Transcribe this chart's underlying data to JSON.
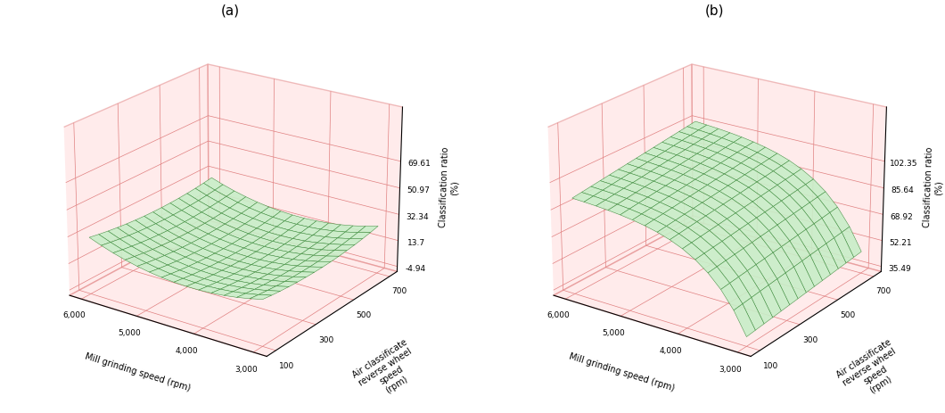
{
  "title_a": "(a)",
  "title_b": "(b)",
  "zlabel": "Classification ratio\n(%)",
  "xlabel": "Mill grinding speed (rpm)",
  "ylabel_line1": "Air classificate",
  "ylabel_line2": "reverse wheel",
  "ylabel_line3": "speed",
  "ylabel_line4": "(rpm)",
  "x_range": [
    3000,
    6000
  ],
  "y_range": [
    100,
    700
  ],
  "a_zticks": [
    -4.94,
    13.7,
    32.34,
    50.97,
    69.61
  ],
  "b_zticks": [
    35.49,
    52.21,
    68.92,
    85.64,
    102.35
  ],
  "x_ticks": [
    3000,
    4000,
    5000,
    6000
  ],
  "y_ticks": [
    100,
    300,
    500,
    700
  ],
  "surface_facecolor": "#c8eec8",
  "edge_color": "#3a8a3a",
  "pane_facecolor": [
    1.0,
    0.85,
    0.85,
    0.6
  ],
  "pane_edgecolor": "#e08080",
  "background_color": "#ffffff",
  "elev": 22,
  "azim_a": -55,
  "azim_b": -55,
  "n_grid": 15
}
